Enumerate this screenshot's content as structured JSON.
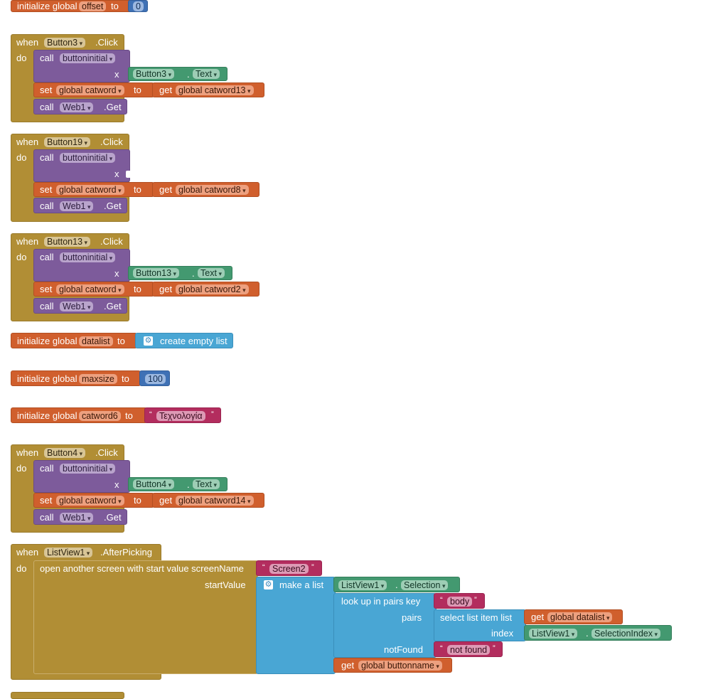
{
  "g_offset": {
    "kw": "initialize global",
    "name": "offset",
    "to": "to",
    "value": "0"
  },
  "b3": {
    "when": "when",
    "do": "do",
    "component": "Button3",
    "event": ".Click",
    "call": "call",
    "proc": "buttoninitial",
    "param": "x",
    "arg_comp": "Button3",
    "arg_prop": "Text",
    "dot": ".",
    "set": "set",
    "set_var": "global catword",
    "to": "to",
    "get": "get",
    "get_var": "global catword13",
    "web": "Web1",
    "web_method": ".Get"
  },
  "b19": {
    "when": "when",
    "do": "do",
    "component": "Button19",
    "event": ".Click",
    "call": "call",
    "proc": "buttoninitial",
    "param": "x",
    "set": "set",
    "set_var": "global catword",
    "to": "to",
    "get": "get",
    "get_var": "global catword8",
    "web": "Web1",
    "web_method": ".Get"
  },
  "b13": {
    "when": "when",
    "do": "do",
    "component": "Button13",
    "event": ".Click",
    "call": "call",
    "proc": "buttoninitial",
    "param": "x",
    "arg_comp": "Button13",
    "arg_prop": "Text",
    "dot": ".",
    "set": "set",
    "set_var": "global catword",
    "to": "to",
    "get": "get",
    "get_var": "global catword2",
    "web": "Web1",
    "web_method": ".Get"
  },
  "g_datalist": {
    "kw": "initialize global",
    "name": "datalist",
    "to": "to",
    "value": "create empty list"
  },
  "g_maxsize": {
    "kw": "initialize global",
    "name": "maxsize",
    "to": "to",
    "value": "100"
  },
  "g_catword6": {
    "kw": "initialize global",
    "name": "catword6",
    "to": "to",
    "value": "Τεχνολογία",
    "q1": "“",
    "q2": "”"
  },
  "b4": {
    "when": "when",
    "do": "do",
    "component": "Button4",
    "event": ".Click",
    "call": "call",
    "proc": "buttoninitial",
    "param": "x",
    "arg_comp": "Button4",
    "arg_prop": "Text",
    "dot": ".",
    "set": "set",
    "set_var": "global catword",
    "to": "to",
    "get": "get",
    "get_var": "global catword14",
    "web": "Web1",
    "web_method": ".Get"
  },
  "lv": {
    "when": "when",
    "do": "do",
    "component": "ListView1",
    "event": ".AfterPicking",
    "open": "open another screen with start value  screenName",
    "screen": "Screen2",
    "start_value": "startValue",
    "make_list": "make a list",
    "sel_comp": "ListView1",
    "sel_prop": "Selection",
    "dot": ".",
    "lookup": "look up in pairs  key",
    "key": "body",
    "pairs": "pairs",
    "select_item": "select list item  list",
    "get": "get",
    "get_datalist": "global datalist",
    "index": "index",
    "idx_comp": "ListView1",
    "idx_prop": "SelectionIndex",
    "notfound_label": "notFound",
    "notfound": "not found",
    "get_buttonname": "global buttonname",
    "q1": "“",
    "q2": "”"
  }
}
